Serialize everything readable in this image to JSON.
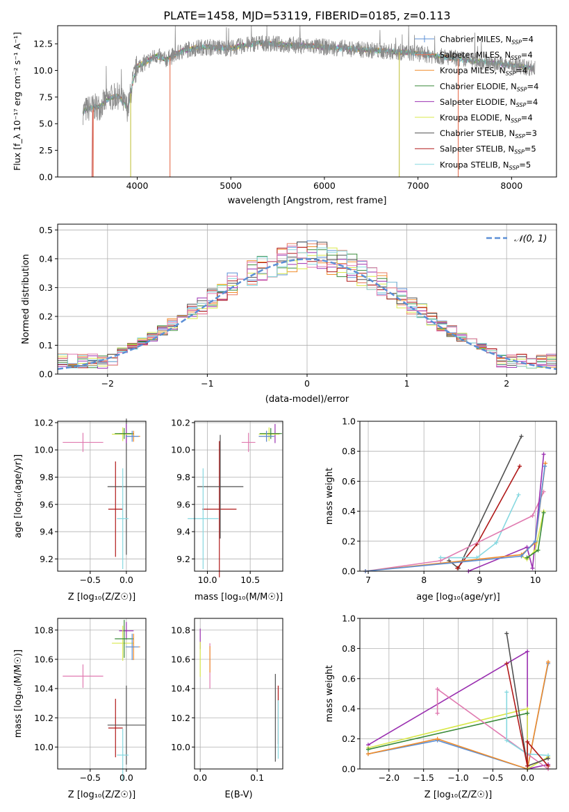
{
  "title": "PLATE=1458, MJD=53119, FIBERID=0185, z=0.113",
  "colors": {
    "Chabrier MILES": "#5b8fd6",
    "Salpeter MILES": "#e8795c",
    "Kroupa MILES": "#f08c2a",
    "Chabrier ELODIE": "#3a8a3a",
    "Salpeter ELODIE": "#9a2fb0",
    "Kroupa ELODIE": "#d8e84a",
    "Chabrier STELIB": "#505050",
    "Salpeter STELIB": "#b01818",
    "Kroupa STELIB": "#86d8e0",
    "pink": "#e07ab0",
    "normal": "#5b8fd6"
  },
  "chart_data": [
    {
      "type": "line",
      "id": "spectrum",
      "xlabel": "wavelength [Angstrom, rest frame]",
      "ylabel": "Flux [f_λ 10⁻¹⁷ erg cm⁻² s⁻¹ A⁻¹]",
      "xlim": [
        3150,
        8480
      ],
      "ylim": [
        0,
        14.2
      ],
      "xticks": [
        4000,
        5000,
        6000,
        7000,
        8000
      ],
      "xtick_labels": [
        "4000",
        "5000",
        "6000",
        "7000",
        "8000"
      ],
      "yticks": [
        0,
        2.5,
        5,
        7.5,
        10,
        12.5
      ],
      "ytick_labels": [
        "0.0",
        "2.5",
        "5.0",
        "7.5",
        "10.0",
        "12.5"
      ],
      "grid": false,
      "legend_position": "right",
      "legend": [
        "Chabrier MILES, N_SSP=4",
        "Salpeter MILES, N_SSP=4",
        "Kroupa MILES, N_SSP=4",
        "Chabrier ELODIE, N_SSP=4",
        "Salpeter ELODIE, N_SSP=4",
        "Kroupa ELODIE, N_SSP=4",
        "Chabrier STELIB, N_SSP=3",
        "Salpeter STELIB, N_SSP=5",
        "Kroupa STELIB, N_SSP=5"
      ],
      "continuum": {
        "x": [
          3400,
          3500,
          3600,
          3700,
          3800,
          3900,
          3950,
          4000,
          4100,
          4200,
          4300,
          4500,
          4700,
          5000,
          5300,
          5600,
          6000,
          6500,
          7000,
          7500,
          8000,
          8250
        ],
        "y": [
          6.1,
          6.5,
          6.6,
          7.4,
          7.6,
          6.4,
          8.8,
          10.4,
          10.8,
          11.4,
          11.0,
          11.9,
          12.2,
          12.1,
          12.6,
          12.4,
          12.2,
          11.9,
          11.6,
          11.0,
          10.5,
          10.2
        ]
      }
    },
    {
      "type": "bar",
      "id": "residual-histogram",
      "xlabel": "(data-model)/error",
      "ylabel": "Normed distribution",
      "xlim": [
        -2.5,
        2.5
      ],
      "ylim": [
        0,
        0.52
      ],
      "xticks": [
        -2,
        -1,
        0,
        1,
        2
      ],
      "xtick_labels": [
        "−2",
        "−1",
        "0",
        "1",
        "2"
      ],
      "yticks": [
        0,
        0.1,
        0.2,
        0.3,
        0.4,
        0.5
      ],
      "ytick_labels": [
        "0.0",
        "0.1",
        "0.2",
        "0.3",
        "0.4",
        "0.5"
      ],
      "grid": true,
      "legend_position": "top-right",
      "normal_label": "𝒩(0, 1)"
    },
    {
      "type": "scatter",
      "id": "age-vs-metallicity",
      "xlabel": "Z [log₁₀(Z/Z☉)]",
      "ylabel": "age  [log₁₀(age/yr)]",
      "xlim": [
        -0.95,
        0.27
      ],
      "ylim": [
        9.11,
        10.21
      ],
      "xticks": [
        -0.5,
        0
      ],
      "xtick_labels": [
        "−0.5",
        "0.0"
      ],
      "yticks": [
        9.2,
        9.4,
        9.6,
        9.8,
        10.0,
        10.2
      ],
      "ytick_labels": [
        "9.2",
        "9.4",
        "9.6",
        "9.8",
        "10.0",
        "10.2"
      ],
      "grid": true,
      "points": [
        {
          "model": "pink",
          "x": -0.6,
          "y": 10.055,
          "xerr": 0.28,
          "yerr": 0.07
        },
        {
          "model": "Salpeter STELIB",
          "x": -0.15,
          "y": 9.565,
          "xerr": 0.1,
          "yerr": 0.35
        },
        {
          "model": "Chabrier STELIB",
          "x": 0.0,
          "y": 9.73,
          "xerr": 0.26,
          "yerr": 0.5
        },
        {
          "model": "Kroupa STELIB",
          "x": -0.05,
          "y": 9.495,
          "xerr": 0.08,
          "yerr": 0.37
        },
        {
          "model": "Salpeter ELODIE",
          "x": 0.0,
          "y": 10.12,
          "xerr": 0.1,
          "yerr": 0.07
        },
        {
          "model": "Kroupa ELODIE",
          "x": -0.05,
          "y": 10.115,
          "xerr": 0.15,
          "yerr": 0.05
        },
        {
          "model": "Chabrier ELODIE",
          "x": -0.03,
          "y": 10.12,
          "xerr": 0.13,
          "yerr": 0.04
        },
        {
          "model": "Kroupa MILES",
          "x": 0.1,
          "y": 10.1,
          "xerr": 0.09,
          "yerr": 0.04
        },
        {
          "model": "Chabrier MILES",
          "x": 0.08,
          "y": 10.1,
          "xerr": 0.09,
          "yerr": 0.04
        }
      ]
    },
    {
      "type": "scatter",
      "id": "age-vs-mass",
      "xlabel": "mass [log₁₀(M/M☉)]",
      "ylabel": "",
      "xlim": [
        9.85,
        10.88
      ],
      "ylim": [
        9.11,
        10.21
      ],
      "xticks": [
        10.0,
        10.5
      ],
      "xtick_labels": [
        "10.0",
        "10.5"
      ],
      "yticks": [
        9.2,
        9.4,
        9.6,
        9.8,
        10.0,
        10.2
      ],
      "ytick_labels": [
        "9.2",
        "9.4",
        "9.6",
        "9.8",
        "10.0",
        "10.2"
      ],
      "grid": true,
      "points": [
        {
          "model": "pink",
          "x": 10.48,
          "y": 10.055,
          "xerr": 0.08,
          "yerr": 0.07
        },
        {
          "model": "Salpeter STELIB",
          "x": 10.14,
          "y": 9.565,
          "xerr": 0.2,
          "yerr": 0.5
        },
        {
          "model": "Chabrier STELIB",
          "x": 10.15,
          "y": 9.73,
          "xerr": 0.27,
          "yerr": 0.38
        },
        {
          "model": "Kroupa STELIB",
          "x": 9.95,
          "y": 9.495,
          "xerr": 0.18,
          "yerr": 0.37
        },
        {
          "model": "Salpeter ELODIE",
          "x": 10.79,
          "y": 10.12,
          "xerr": 0.06,
          "yerr": 0.07
        },
        {
          "model": "Kroupa ELODIE",
          "x": 10.72,
          "y": 10.115,
          "xerr": 0.12,
          "yerr": 0.05
        },
        {
          "model": "Chabrier ELODIE",
          "x": 10.74,
          "y": 10.12,
          "xerr": 0.13,
          "yerr": 0.04
        },
        {
          "model": "Kroupa MILES",
          "x": 10.69,
          "y": 10.1,
          "xerr": 0.09,
          "yerr": 0.04
        },
        {
          "model": "Chabrier MILES",
          "x": 10.69,
          "y": 10.1,
          "xerr": 0.09,
          "yerr": 0.04
        }
      ]
    },
    {
      "type": "line",
      "id": "mass-weight-vs-age",
      "xlabel": "age  [log₁₀(age/yr)]",
      "ylabel": "mass weight",
      "xlim": [
        6.85,
        10.38
      ],
      "ylim": [
        0,
        1.0
      ],
      "xticks": [
        7,
        8,
        9,
        10
      ],
      "xtick_labels": [
        "7",
        "8",
        "9",
        "10"
      ],
      "yticks": [
        0,
        0.2,
        0.4,
        0.6,
        0.8,
        1.0
      ],
      "ytick_labels": [
        "0.0",
        "0.2",
        "0.4",
        "0.6",
        "0.8",
        "1.0"
      ],
      "grid": true,
      "series": [
        {
          "model": "Chabrier STELIB",
          "x": [
            8.45,
            8.62,
            9.75
          ],
          "y": [
            0.07,
            0.02,
            0.9
          ]
        },
        {
          "model": "Salpeter STELIB",
          "x": [
            8.6,
            8.95,
            9.72
          ],
          "y": [
            0.02,
            0.18,
            0.7
          ]
        },
        {
          "model": "Kroupa STELIB",
          "x": [
            8.3,
            8.95,
            9.3,
            9.7
          ],
          "y": [
            0.09,
            0.09,
            0.19,
            0.51
          ]
        },
        {
          "model": "pink",
          "x": [
            6.95,
            8.3,
            9.95,
            10.15
          ],
          "y": [
            0.0,
            0.07,
            0.37,
            0.53
          ]
        },
        {
          "model": "Salpeter ELODIE",
          "x": [
            8.8,
            9.85,
            9.95,
            10.15
          ],
          "y": [
            0.0,
            0.16,
            0.02,
            0.78
          ]
        },
        {
          "model": "Kroupa ELODIE",
          "x": [
            9.75,
            9.85,
            10.0,
            10.15
          ],
          "y": [
            0.1,
            0.08,
            0.14,
            0.4
          ]
        },
        {
          "model": "Chabrier ELODIE",
          "x": [
            9.85,
            10.05,
            10.15
          ],
          "y": [
            0.09,
            0.14,
            0.39
          ]
        },
        {
          "model": "Kroupa MILES",
          "x": [
            6.95,
            9.75,
            10.0,
            10.18
          ],
          "y": [
            0.0,
            0.11,
            0.19,
            0.72
          ]
        },
        {
          "model": "Chabrier MILES",
          "x": [
            6.95,
            9.75,
            10.0,
            10.17
          ],
          "y": [
            0.0,
            0.1,
            0.2,
            0.7
          ]
        }
      ]
    },
    {
      "type": "scatter",
      "id": "mass-vs-metallicity",
      "xlabel": "Z [log₁₀(Z/Z☉)]",
      "ylabel": "mass [log₁₀(M/M☉)]",
      "xlim": [
        -0.95,
        0.27
      ],
      "ylim": [
        9.85,
        10.88
      ],
      "xticks": [
        -0.5,
        0
      ],
      "xtick_labels": [
        "−0.5",
        "0.0"
      ],
      "yticks": [
        10.0,
        10.2,
        10.4,
        10.6,
        10.8
      ],
      "ytick_labels": [
        "10.0",
        "10.2",
        "10.4",
        "10.6",
        "10.8"
      ],
      "grid": true,
      "points": [
        {
          "model": "pink",
          "x": -0.6,
          "y": 10.485,
          "xerr": 0.28,
          "yerr": 0.08
        },
        {
          "model": "Salpeter STELIB",
          "x": -0.15,
          "y": 10.13,
          "xerr": 0.1,
          "yerr": 0.2
        },
        {
          "model": "Chabrier STELIB",
          "x": 0.0,
          "y": 10.15,
          "xerr": 0.26,
          "yerr": 0.27
        },
        {
          "model": "Kroupa STELIB",
          "x": -0.05,
          "y": 9.945,
          "xerr": 0.08,
          "yerr": 0.18
        },
        {
          "model": "Salpeter ELODIE",
          "x": 0.0,
          "y": 10.795,
          "xerr": 0.1,
          "yerr": 0.06
        },
        {
          "model": "Kroupa ELODIE",
          "x": -0.05,
          "y": 10.71,
          "xerr": 0.15,
          "yerr": 0.12
        },
        {
          "model": "Chabrier ELODIE",
          "x": -0.03,
          "y": 10.74,
          "xerr": 0.13,
          "yerr": 0.13
        },
        {
          "model": "Kroupa MILES",
          "x": 0.1,
          "y": 10.685,
          "xerr": 0.09,
          "yerr": 0.09
        },
        {
          "model": "Chabrier MILES",
          "x": 0.08,
          "y": 10.685,
          "xerr": 0.09,
          "yerr": 0.09
        }
      ]
    },
    {
      "type": "scatter",
      "id": "mass-vs-extinction",
      "xlabel": "E(B-V)",
      "ylabel": "",
      "xlim": [
        -0.01,
        0.145
      ],
      "ylim": [
        9.85,
        10.88
      ],
      "xticks": [
        0,
        0.1
      ],
      "xtick_labels": [
        "0.0",
        "0.1"
      ],
      "yticks": [
        10.0,
        10.2,
        10.4,
        10.6,
        10.8
      ],
      "ytick_labels": [
        "10.0",
        "10.2",
        "10.4",
        "10.6",
        "10.8"
      ],
      "grid": true,
      "points": [
        {
          "model": "Salpeter ELODIE",
          "x": 0.0,
          "y": 10.74,
          "xerr": 0.0,
          "yerr": 0.07
        },
        {
          "model": "Kroupa ELODIE",
          "x": 0.0,
          "y": 10.6,
          "xerr": 0.0,
          "yerr": 0.12
        },
        {
          "model": "pink",
          "x": 0.017,
          "y": 10.555,
          "xerr": 0.0,
          "yerr": 0.155
        },
        {
          "model": "Kroupa MILES",
          "x": 0.017,
          "y": 10.6,
          "xerr": 0.0,
          "yerr": 0.09
        },
        {
          "model": "Chabrier STELIB",
          "x": 0.132,
          "y": 10.2,
          "xerr": 0.0,
          "yerr": 0.3
        },
        {
          "model": "Salpeter STELIB",
          "x": 0.137,
          "y": 10.22,
          "xerr": 0.0,
          "yerr": 0.2
        },
        {
          "model": "Kroupa STELIB",
          "x": 0.137,
          "y": 10.12,
          "xerr": 0.0,
          "yerr": 0.2
        }
      ]
    },
    {
      "type": "line",
      "id": "mass-weight-vs-metallicity",
      "xlabel": "Z [log₁₀(Z/Z☉)]",
      "ylabel": "mass weight",
      "xlim": [
        -2.42,
        0.42
      ],
      "ylim": [
        0,
        1.0
      ],
      "xticks": [
        -2.0,
        -1.5,
        -1.0,
        -0.5,
        0.0
      ],
      "xtick_labels": [
        "−2.0",
        "−1.5",
        "−1.0",
        "−0.5",
        "0.0"
      ],
      "yticks": [
        0,
        0.2,
        0.4,
        0.6,
        0.8,
        1.0
      ],
      "ytick_labels": [
        "0.0",
        "0.2",
        "0.4",
        "0.6",
        "0.8",
        "1.0"
      ],
      "grid": true,
      "series": [
        {
          "model": "Chabrier MILES",
          "x": [
            -2.3,
            -1.3,
            0.0,
            0.3
          ],
          "y": [
            0.1,
            0.19,
            0.0,
            0.7
          ]
        },
        {
          "model": "Kroupa MILES",
          "x": [
            -2.3,
            -1.3,
            0.0,
            0.3
          ],
          "y": [
            0.1,
            0.2,
            0.0,
            0.71
          ]
        },
        {
          "model": "Salpeter ELODIE",
          "x": [
            -2.3,
            0.0,
            0.0,
            0.3
          ],
          "y": [
            0.16,
            0.78,
            0.0,
            0.03
          ]
        },
        {
          "model": "Kroupa ELODIE",
          "x": [
            -2.3,
            0.0,
            0.0,
            0.3
          ],
          "y": [
            0.14,
            0.4,
            0.0,
            0.08
          ]
        },
        {
          "model": "Chabrier ELODIE",
          "x": [
            -2.3,
            0.0
          ],
          "y": [
            0.13,
            0.37
          ]
        },
        {
          "model": "pink",
          "x": [
            -1.3,
            -1.3,
            0.3
          ],
          "y": [
            0.37,
            0.53,
            0.0
          ]
        },
        {
          "model": "Kroupa STELIB",
          "x": [
            -0.3,
            -0.3,
            0.0,
            0.3
          ],
          "y": [
            0.51,
            0.19,
            0.1,
            0.09
          ]
        },
        {
          "model": "Chabrier STELIB",
          "x": [
            -0.3,
            0.0,
            0.3
          ],
          "y": [
            0.9,
            0.02,
            0.07
          ]
        },
        {
          "model": "Salpeter STELIB",
          "x": [
            -0.3,
            0.0,
            0.0,
            0.3
          ],
          "y": [
            0.7,
            0.02,
            0.18,
            0.02
          ]
        }
      ]
    }
  ]
}
